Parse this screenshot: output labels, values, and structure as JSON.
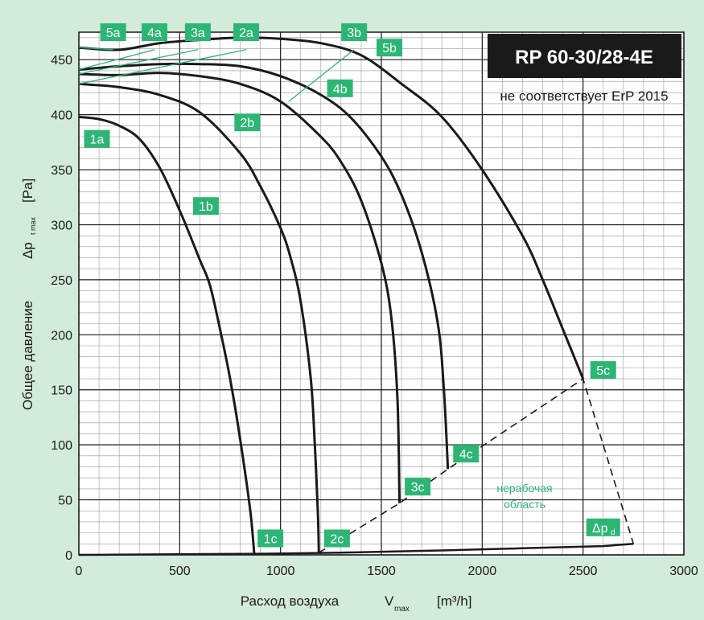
{
  "colors": {
    "background": "#d3ebdb",
    "plot": "#ffffff",
    "curve": "#1a1a1a",
    "badge": "#2bb673",
    "title_box": "#1a1a1a"
  },
  "chart_data": {
    "type": "line",
    "title": "RP 60-30/28-4E",
    "subtitle": "не соответствует ErP 2015",
    "xlabel": "Расход воздуха",
    "xlabel_symbol": "V",
    "xlabel_subscript": "max",
    "xlabel_unit": "[m³/h]",
    "ylabel": "Общее давление",
    "ylabel_symbol": "Δp",
    "ylabel_subscript": "t max",
    "ylabel_unit": "[Pa]",
    "xlim": [
      0,
      3000
    ],
    "ylim": [
      0,
      475
    ],
    "x_ticks": [
      0,
      500,
      1000,
      1500,
      2000,
      2500,
      3000
    ],
    "y_ticks": [
      0,
      50,
      100,
      150,
      200,
      250,
      300,
      350,
      400,
      450
    ],
    "grid": true,
    "series": [
      {
        "name": "1",
        "points": [
          [
            0,
            398
          ],
          [
            100,
            396
          ],
          [
            200,
            390
          ],
          [
            300,
            378
          ],
          [
            400,
            352
          ],
          [
            500,
            313
          ],
          [
            600,
            268
          ],
          [
            650,
            245
          ],
          [
            700,
            205
          ],
          [
            750,
            160
          ],
          [
            800,
            105
          ],
          [
            850,
            40
          ],
          [
            870,
            0
          ]
        ]
      },
      {
        "name": "2",
        "points": [
          [
            0,
            428
          ],
          [
            200,
            425
          ],
          [
            400,
            418
          ],
          [
            600,
            402
          ],
          [
            800,
            365
          ],
          [
            900,
            335
          ],
          [
            1000,
            297
          ],
          [
            1050,
            270
          ],
          [
            1100,
            230
          ],
          [
            1150,
            160
          ],
          [
            1170,
            100
          ],
          [
            1185,
            40
          ],
          [
            1190,
            2
          ]
        ]
      },
      {
        "name": "3",
        "points": [
          [
            0,
            437
          ],
          [
            200,
            436
          ],
          [
            400,
            438
          ],
          [
            600,
            435
          ],
          [
            800,
            428
          ],
          [
            1000,
            412
          ],
          [
            1200,
            380
          ],
          [
            1300,
            357
          ],
          [
            1400,
            322
          ],
          [
            1500,
            265
          ],
          [
            1550,
            215
          ],
          [
            1580,
            140
          ],
          [
            1590,
            47
          ]
        ]
      },
      {
        "name": "4",
        "points": [
          [
            0,
            441
          ],
          [
            200,
            444
          ],
          [
            400,
            446
          ],
          [
            600,
            446
          ],
          [
            800,
            444
          ],
          [
            1000,
            435
          ],
          [
            1200,
            418
          ],
          [
            1350,
            397
          ],
          [
            1500,
            362
          ],
          [
            1600,
            327
          ],
          [
            1700,
            275
          ],
          [
            1780,
            210
          ],
          [
            1810,
            150
          ],
          [
            1830,
            78
          ]
        ]
      },
      {
        "name": "5",
        "points": [
          [
            0,
            461
          ],
          [
            200,
            459
          ],
          [
            400,
            465
          ],
          [
            600,
            468
          ],
          [
            800,
            470
          ],
          [
            1000,
            469
          ],
          [
            1200,
            465
          ],
          [
            1400,
            454
          ],
          [
            1600,
            428
          ],
          [
            1800,
            398
          ],
          [
            2000,
            350
          ],
          [
            2200,
            290
          ],
          [
            2300,
            250
          ],
          [
            2400,
            205
          ],
          [
            2500,
            160
          ]
        ]
      }
    ],
    "boundary_line": {
      "points": [
        [
          0,
          0
        ],
        [
          900,
          1
        ],
        [
          1300,
          2
        ],
        [
          1800,
          4
        ],
        [
          2200,
          6
        ],
        [
          2600,
          8
        ],
        [
          2750,
          10
        ]
      ]
    },
    "non_working_boundary": {
      "points": [
        [
          1190,
          2
        ],
        [
          1590,
          47
        ],
        [
          1830,
          78
        ],
        [
          2500,
          160
        ],
        [
          2750,
          10
        ]
      ]
    },
    "markers": [
      {
        "label": "5a",
        "x": 170,
        "y": 475
      },
      {
        "label": "4a",
        "x": 375,
        "y": 475
      },
      {
        "label": "3a",
        "x": 590,
        "y": 475
      },
      {
        "label": "2a",
        "x": 830,
        "y": 475
      },
      {
        "label": "3b",
        "x": 1365,
        "y": 475
      },
      {
        "label": "5b",
        "x": 1540,
        "y": 461
      },
      {
        "label": "4b",
        "x": 1295,
        "y": 424
      },
      {
        "label": "2b",
        "x": 835,
        "y": 393
      },
      {
        "label": "1a",
        "x": 90,
        "y": 378
      },
      {
        "label": "1b",
        "x": 630,
        "y": 317
      },
      {
        "label": "5c",
        "x": 2600,
        "y": 168
      },
      {
        "label": "4c",
        "x": 1920,
        "y": 92
      },
      {
        "label": "3c",
        "x": 1680,
        "y": 62
      },
      {
        "label": "2c",
        "x": 1280,
        "y": 15
      },
      {
        "label": "1c",
        "x": 950,
        "y": 15
      },
      {
        "label": "Δp",
        "sub": "d",
        "x": 2600,
        "y": 25
      }
    ],
    "annotations": [
      {
        "text": "нерабочая\nобласть",
        "x": 2150,
        "y": 55
      }
    ]
  }
}
